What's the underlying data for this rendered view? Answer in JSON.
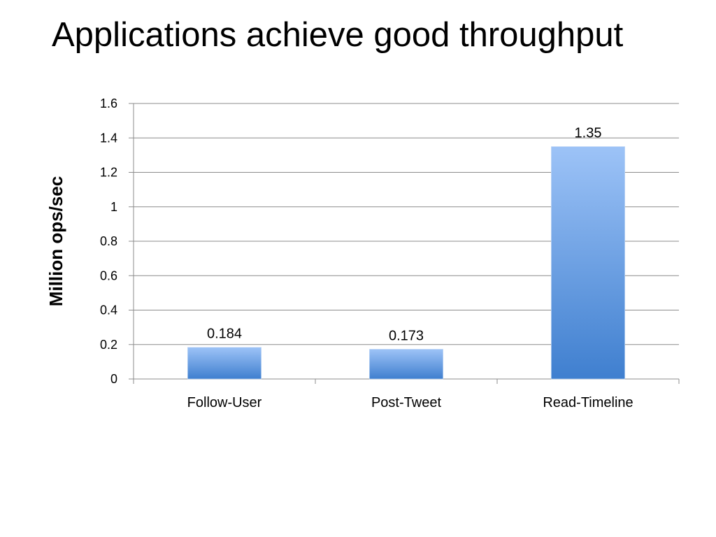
{
  "slide": {
    "title": "Applications achieve good throughput"
  },
  "chart_data": {
    "type": "bar",
    "categories": [
      "Follow-User",
      "Post-Tweet",
      "Read-Timeline"
    ],
    "values": [
      0.184,
      0.173,
      1.35
    ],
    "value_labels": [
      "0.184",
      "0.173",
      "1.35"
    ],
    "title": "",
    "xlabel": "",
    "ylabel": "Million ops/sec",
    "ylim": [
      0,
      1.6
    ],
    "yticks": [
      0,
      0.2,
      0.4,
      0.6,
      0.8,
      1,
      1.2,
      1.4,
      1.6
    ],
    "ytick_labels": [
      "0",
      "0.2",
      "0.4",
      "0.6",
      "0.8",
      "1",
      "1.2",
      "1.4",
      "1.6"
    ],
    "grid": true,
    "legend": "none",
    "colors": {
      "bar_top": "#9dc3f7",
      "bar_bottom": "#3f7fcf",
      "grid": "#8c8c8c",
      "axis": "#8c8c8c"
    }
  }
}
